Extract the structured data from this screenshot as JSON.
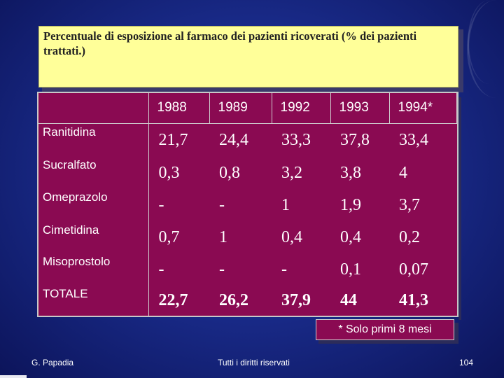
{
  "title": "Percentuale di esposizione al farmaco dei pazienti ricoverati (% dei pazienti trattati.)",
  "table": {
    "years": [
      "1988",
      "1989",
      "1992",
      "1993",
      "1994*"
    ],
    "rows": [
      {
        "label": "Ranitidina",
        "values": [
          "21,7",
          "24,4",
          "33,3",
          "37,8",
          "33,4"
        ]
      },
      {
        "label": "Sucralfato",
        "values": [
          "0,3",
          "0,8",
          "3,2",
          "3,8",
          "4"
        ]
      },
      {
        "label": "Omeprazolo",
        "values": [
          "-",
          "-",
          "1",
          "1,9",
          "3,7"
        ]
      },
      {
        "label": "Cimetidina",
        "values": [
          "0,7",
          "1",
          "0,4",
          "0,4",
          "0,2"
        ]
      },
      {
        "label": "Misoprostolo",
        "values": [
          "-",
          "-",
          "-",
          "0,1",
          "0,07"
        ]
      },
      {
        "label": "TOTALE",
        "values": [
          "22,7",
          "26,2",
          "37,9",
          "44",
          "41,3"
        ]
      }
    ]
  },
  "note": "* Solo primi 8 mesi",
  "footer": {
    "author": "G. Papadia",
    "rights": "Tutti i diritti riservati",
    "page": "104"
  }
}
